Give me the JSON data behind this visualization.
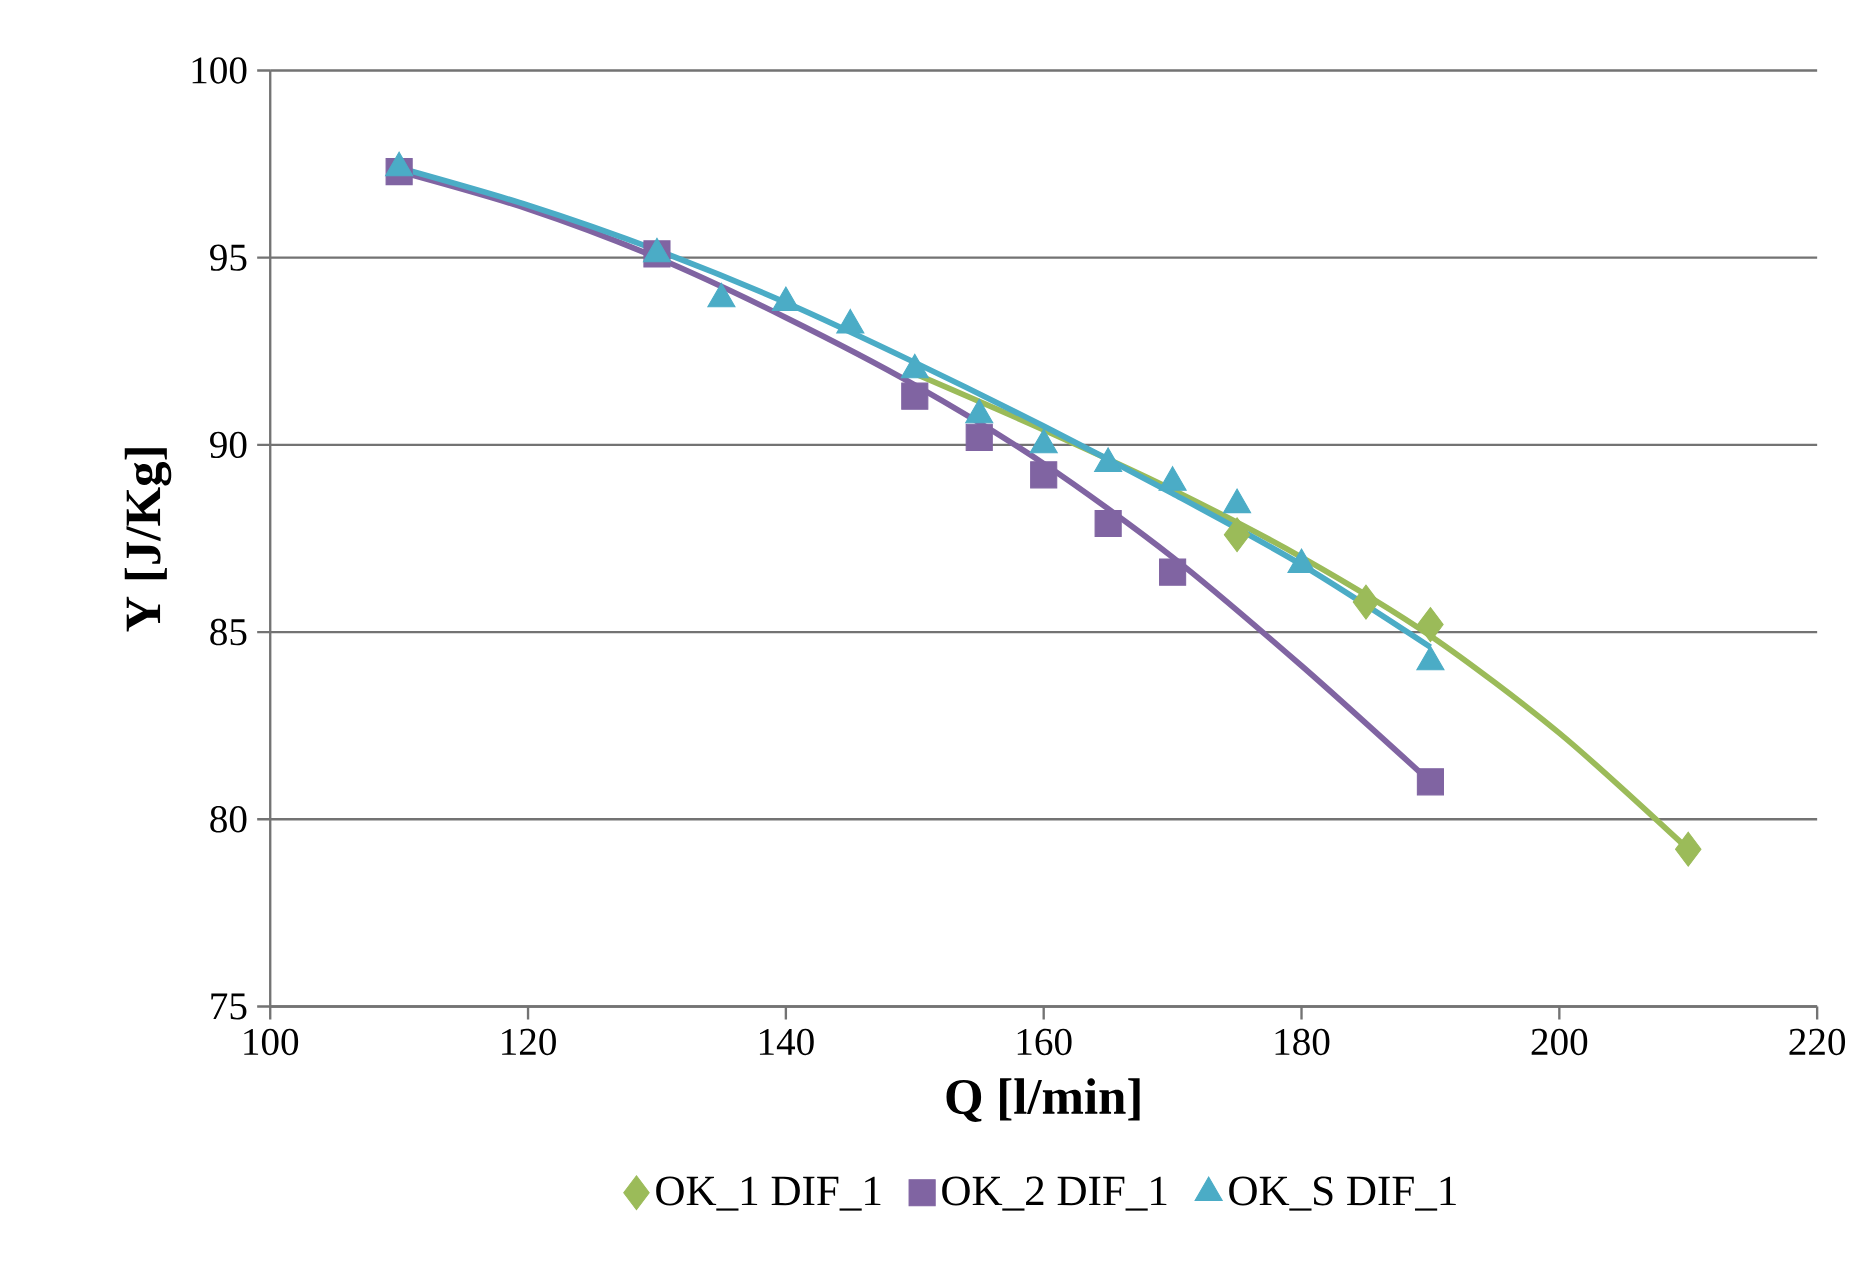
{
  "chart_data": {
    "type": "scatter",
    "xlabel": "Q [l/min]",
    "ylabel": "Y [J/Kg]",
    "xlim": [
      100,
      220
    ],
    "xticks": [
      100,
      120,
      140,
      160,
      180,
      200,
      220
    ],
    "ylim": [
      75,
      100
    ],
    "yticks": [
      75,
      80,
      85,
      90,
      95,
      100
    ],
    "grid": "y",
    "legend": "bottom",
    "series": [
      {
        "name": "OK_1 DIF_1",
        "marker": "diamond",
        "color": "#9bbb59",
        "x": [
          175,
          185,
          190,
          210
        ],
        "values": [
          87.6,
          85.8,
          85.2,
          79.2
        ]
      },
      {
        "name": "OK_2 DIF_1",
        "marker": "square",
        "color": "#8064a2",
        "x": [
          110,
          130,
          150,
          155,
          160,
          165,
          170,
          190
        ],
        "values": [
          97.3,
          95.1,
          91.3,
          90.2,
          89.2,
          87.9,
          86.6,
          81.0
        ]
      },
      {
        "name": "OK_S DIF_1",
        "marker": "triangle",
        "color": "#4bacc6",
        "x": [
          110,
          130,
          135,
          140,
          145,
          150,
          155,
          160,
          165,
          170,
          175,
          180,
          190
        ],
        "values": [
          97.4,
          95.1,
          93.9,
          93.8,
          93.2,
          92.0,
          90.8,
          90.0,
          89.5,
          89.0,
          88.4,
          86.8,
          84.2
        ]
      },
      {
        "type": "line",
        "color": "#9bbb59",
        "x": [
          150,
          160,
          170,
          180,
          190,
          200,
          210
        ],
        "values": [
          91.9,
          90.4,
          88.8,
          87.0,
          84.9,
          82.3,
          79.2
        ]
      },
      {
        "type": "line",
        "color": "#8064a2",
        "x": [
          110,
          120,
          130,
          140,
          150,
          160,
          170,
          180,
          190
        ],
        "values": [
          97.3,
          96.3,
          95.0,
          93.4,
          91.6,
          89.5,
          87.0,
          84.1,
          81.0
        ]
      },
      {
        "type": "line",
        "color": "#4bacc6",
        "x": [
          110,
          120,
          130,
          140,
          150,
          160,
          170,
          180,
          190
        ],
        "values": [
          97.4,
          96.4,
          95.2,
          93.8,
          92.2,
          90.5,
          88.7,
          86.8,
          84.6
        ]
      }
    ]
  }
}
